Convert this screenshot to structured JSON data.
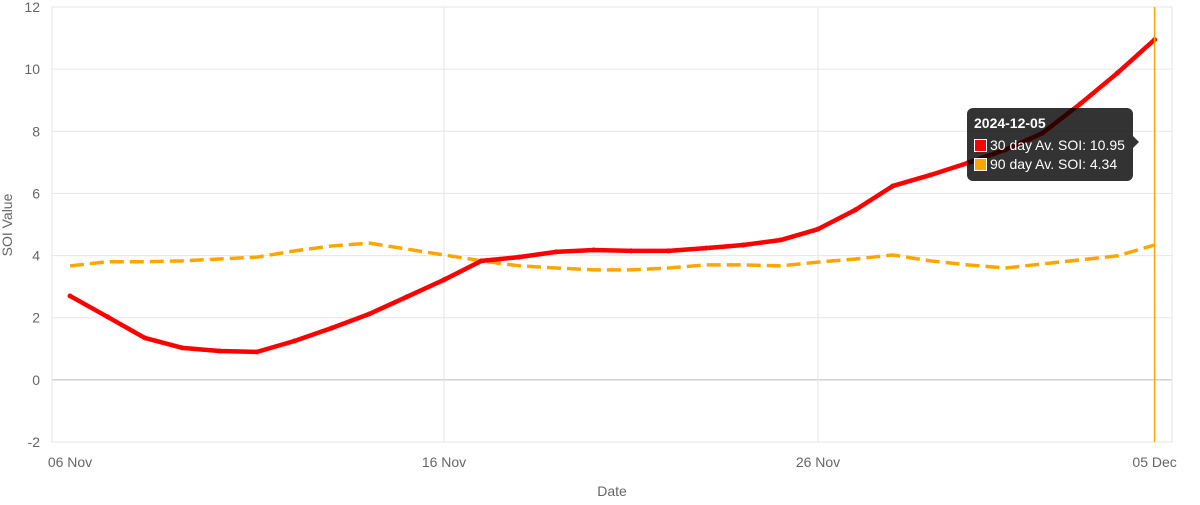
{
  "chart_data": {
    "type": "line",
    "title": "",
    "xlabel": "Date",
    "ylabel": "SOI Value",
    "ylim": [
      -2,
      12
    ],
    "yticks": [
      "-2",
      "0",
      "2",
      "4",
      "6",
      "8",
      "10",
      "12"
    ],
    "xtick_labels": [
      {
        "index": 0,
        "label": "06 Nov"
      },
      {
        "index": 10,
        "label": "16 Nov"
      },
      {
        "index": 20,
        "label": "26 Nov"
      },
      {
        "index": 29,
        "label": "05 Dec"
      }
    ],
    "x": [
      "2024-11-06",
      "2024-11-07",
      "2024-11-08",
      "2024-11-09",
      "2024-11-10",
      "2024-11-11",
      "2024-11-12",
      "2024-11-13",
      "2024-11-14",
      "2024-11-15",
      "2024-11-16",
      "2024-11-17",
      "2024-11-18",
      "2024-11-19",
      "2024-11-20",
      "2024-11-21",
      "2024-11-22",
      "2024-11-23",
      "2024-11-24",
      "2024-11-25",
      "2024-11-26",
      "2024-11-27",
      "2024-11-28",
      "2024-11-29",
      "2024-11-30",
      "2024-12-01",
      "2024-12-02",
      "2024-12-03",
      "2024-12-04",
      "2024-12-05"
    ],
    "series": [
      {
        "name": "30 day Av. SOI",
        "color": "#ff0000",
        "dashed": false,
        "values": [
          2.7,
          2.03,
          1.35,
          1.03,
          0.93,
          0.9,
          1.25,
          1.67,
          2.12,
          2.67,
          3.22,
          3.83,
          3.95,
          4.12,
          4.18,
          4.15,
          4.15,
          4.24,
          4.34,
          4.5,
          4.85,
          5.47,
          6.24,
          6.59,
          6.98,
          7.4,
          7.94,
          8.87,
          9.87,
          10.95
        ]
      },
      {
        "name": "90 day Av. SOI",
        "color": "#ffa500",
        "dashed": true,
        "values": [
          3.67,
          3.8,
          3.8,
          3.83,
          3.89,
          3.95,
          4.15,
          4.31,
          4.4,
          4.21,
          4.02,
          3.83,
          3.67,
          3.6,
          3.54,
          3.54,
          3.6,
          3.7,
          3.7,
          3.67,
          3.79,
          3.89,
          4.02,
          3.83,
          3.7,
          3.6,
          3.73,
          3.86,
          3.99,
          4.34
        ]
      }
    ],
    "grid": true,
    "crosshair_index": 29
  },
  "tooltip": {
    "title": "2024-12-05",
    "rows": [
      {
        "text": "30 day Av. SOI: 10.95",
        "color": "#ff0000"
      },
      {
        "text": "90 day Av. SOI: 4.34",
        "color": "#ffa500"
      }
    ]
  }
}
